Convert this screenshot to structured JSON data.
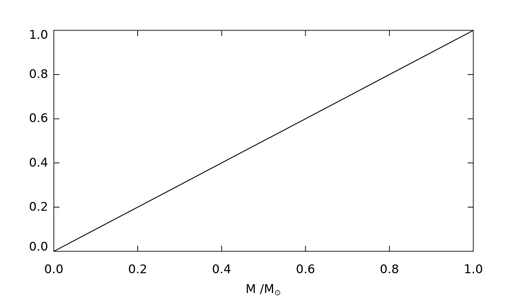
{
  "chart_data": {
    "type": "line",
    "x": [
      0,
      1
    ],
    "series": [
      {
        "values": [
          0,
          1
        ],
        "color": "#000000"
      }
    ],
    "xlabel": "M /M",
    "xlabel_subscript": "⊙",
    "xlim": [
      0,
      1
    ],
    "ylim": [
      0,
      1
    ],
    "xticks": [
      {
        "value": 0,
        "label": "0.0"
      },
      0.2,
      0.4,
      0.6,
      0.8,
      {
        "value": 1,
        "label": "1.0"
      }
    ],
    "yticks": [
      {
        "value": 0,
        "label": "0.0"
      },
      0.2,
      0.4,
      0.6,
      0.8,
      {
        "value": 1,
        "label": "1.0"
      }
    ],
    "grid": false
  }
}
